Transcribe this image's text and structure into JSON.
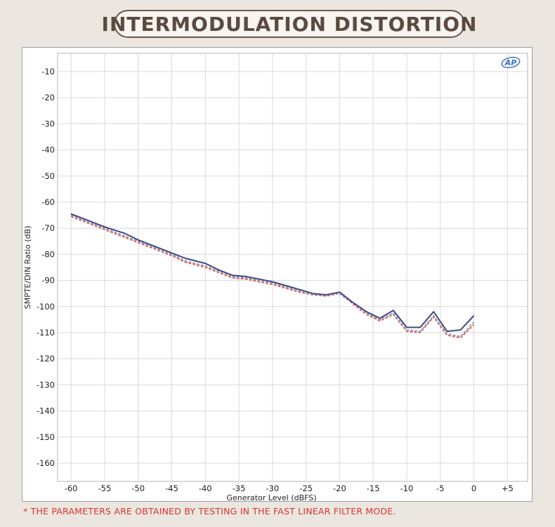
{
  "header": {
    "title": "INTERMODULATION DISTORTION"
  },
  "footnote": "* THE PARAMETERS ARE OBTAINED BY TESTING IN THE FAST LINEAR FILTER MODE.",
  "logo": {
    "text": "AP",
    "color": "#3a6fc4"
  },
  "colors": {
    "background": "#ece6e0",
    "title_border": "#6b584c",
    "title_text": "#5a4a40",
    "footnote": "#d8342e",
    "grid": "#d9d9d9"
  },
  "chart_data": {
    "type": "line",
    "title": "",
    "xlabel": "Generator Level (dBFS)",
    "ylabel": "SMPTE/DIN Ratio (dB)",
    "xlim": [
      -62,
      8
    ],
    "ylim": [
      -167,
      -3
    ],
    "xticks": [
      -60,
      -55,
      -50,
      -45,
      -40,
      -35,
      -30,
      -25,
      -20,
      -15,
      -10,
      -5,
      0,
      5
    ],
    "xtick_labels": [
      "-60",
      "-55",
      "-50",
      "-45",
      "-40",
      "-35",
      "-30",
      "-25",
      "-20",
      "-15",
      "-10",
      "-5",
      "0",
      "+5"
    ],
    "yticks": [
      -10,
      -20,
      -30,
      -40,
      -50,
      -60,
      -70,
      -80,
      -90,
      -100,
      -110,
      -120,
      -130,
      -140,
      -150,
      -160
    ],
    "ytick_labels": [
      "-10",
      "-20",
      "-30",
      "-40",
      "-50",
      "-60",
      "-70",
      "-80",
      "-90",
      "-100",
      "-110",
      "-120",
      "-130",
      "-140",
      "-150",
      "-160"
    ],
    "grid": true,
    "series": [
      {
        "color": "#3d4a8a",
        "dash": "solid",
        "x": [
          -60,
          -58,
          -55,
          -52,
          -50,
          -47,
          -45,
          -43,
          -40,
          -38,
          -36,
          -34,
          -32,
          -30,
          -28,
          -26,
          -24,
          -22,
          -20,
          -18,
          -16,
          -14,
          -12,
          -10,
          -8,
          -6,
          -4,
          -2,
          0
        ],
        "y": [
          -64.5,
          -66.5,
          -69.5,
          -72,
          -74.5,
          -77.5,
          -79.5,
          -81.5,
          -83.5,
          -86,
          -88,
          -88.5,
          -89.5,
          -90.5,
          -92,
          -93.5,
          -95,
          -95.5,
          -94.5,
          -98.5,
          -102,
          -104.5,
          -101.5,
          -108,
          -108,
          -102,
          -109.5,
          -109,
          -103.5
        ]
      },
      {
        "color": "#e06666",
        "dash": "dashed",
        "x": [
          -60,
          -58,
          -55,
          -52,
          -50,
          -47,
          -45,
          -43,
          -40,
          -38,
          -36,
          -34,
          -32,
          -30,
          -28,
          -26,
          -24,
          -22,
          -20,
          -18,
          -16,
          -14,
          -12,
          -10,
          -8,
          -6,
          -4,
          -2,
          0
        ],
        "y": [
          -65.5,
          -67.5,
          -70.5,
          -73.5,
          -75.5,
          -78.5,
          -80.5,
          -83,
          -85,
          -87,
          -89,
          -89.5,
          -90.5,
          -91.5,
          -93,
          -94.5,
          -95.5,
          -96,
          -95,
          -99,
          -103,
          -105.5,
          -103,
          -109.5,
          -110,
          -104,
          -111,
          -112,
          -107
        ]
      },
      {
        "color": "#9aa0a6",
        "dash": "dashed",
        "x": [
          -60,
          -58,
          -55,
          -52,
          -50,
          -47,
          -45,
          -43,
          -40,
          -38,
          -36,
          -34,
          -32,
          -30,
          -28,
          -26,
          -24,
          -22,
          -20,
          -18,
          -16,
          -14,
          -12,
          -10,
          -8,
          -6,
          -4,
          -2,
          0
        ],
        "y": [
          -65,
          -67,
          -70,
          -73,
          -75,
          -78,
          -80,
          -82.5,
          -84.5,
          -86.5,
          -88.5,
          -89,
          -90,
          -91,
          -92.5,
          -94,
          -95.5,
          -95.5,
          -95,
          -98.5,
          -102.5,
          -105,
          -102.5,
          -109,
          -109.5,
          -103.5,
          -110.5,
          -111.5,
          -106
        ]
      }
    ]
  }
}
